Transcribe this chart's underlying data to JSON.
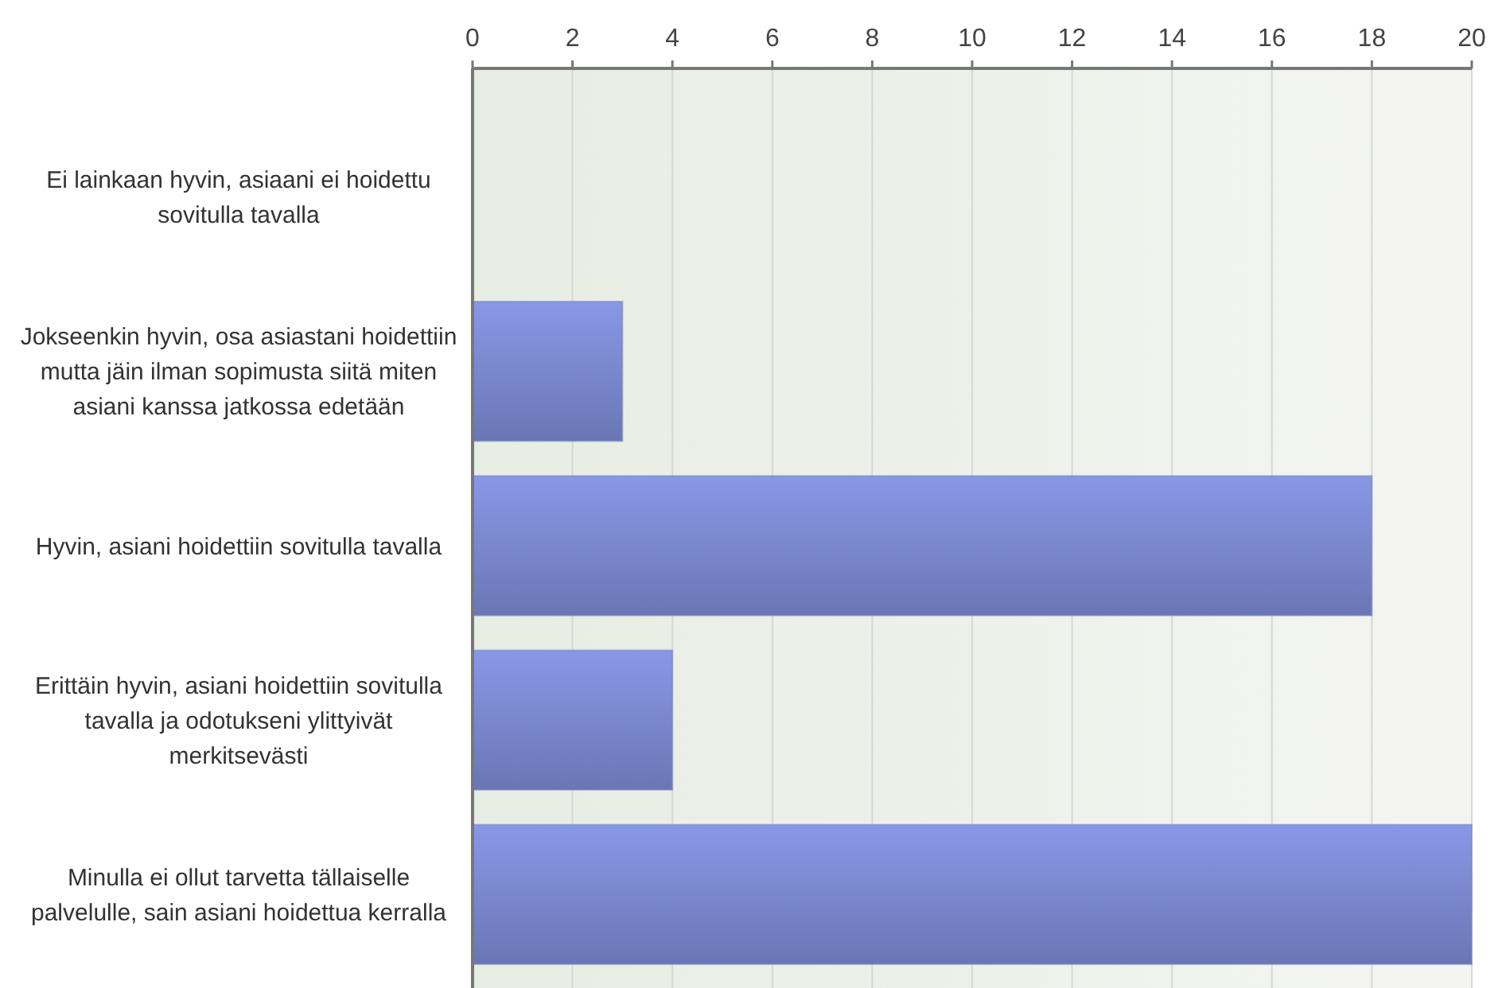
{
  "chart_data": {
    "type": "bar",
    "orientation": "horizontal",
    "categories": [
      "Ei lainkaan hyvin, asiaani ei hoidettu sovitulla tavalla",
      "Jokseenkin hyvin, osa asiastani hoidettiin mutta jäin ilman sopimusta siitä miten asiani kanssa jatkossa edetään",
      "Hyvin, asiani hoidettiin sovitulla tavalla",
      "Erittäin hyvin, asiani hoidettiin sovitulla tavalla ja odotukseni ylittyivät merkitsevästi",
      "Minulla ei ollut tarvetta tällaiselle palvelulle, sain asiani hoidettua kerralla"
    ],
    "values": [
      0,
      3,
      18,
      4,
      20
    ],
    "color": "#7886cc",
    "xlim": [
      0,
      20
    ],
    "xticks": [
      0,
      2,
      4,
      6,
      8,
      10,
      12,
      14,
      16,
      18,
      20
    ],
    "grid": "x"
  }
}
